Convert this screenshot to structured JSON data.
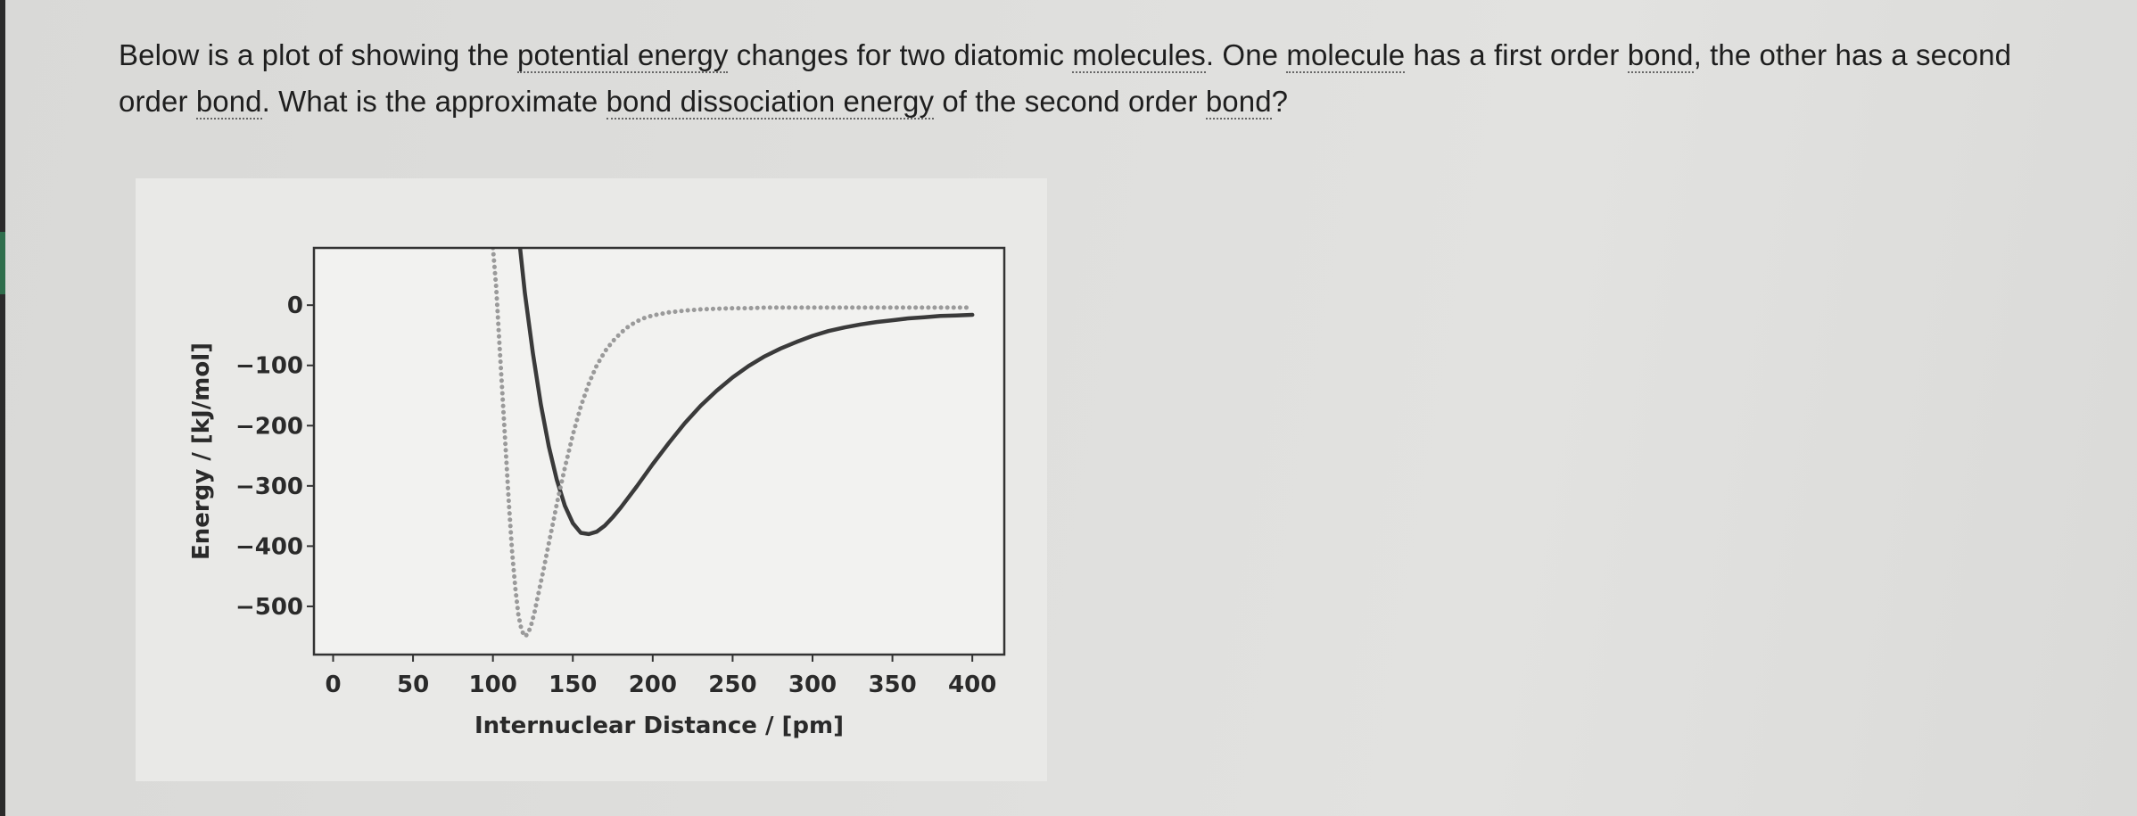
{
  "question": {
    "parts": [
      {
        "text": "Below is a plot of showing the ",
        "dotted": false
      },
      {
        "text": "potential energy",
        "dotted": true
      },
      {
        "text": " changes for two diatomic ",
        "dotted": false
      },
      {
        "text": "molecules",
        "dotted": true
      },
      {
        "text": ".  One ",
        "dotted": false
      },
      {
        "text": "molecule",
        "dotted": true
      },
      {
        "text": " has a first order ",
        "dotted": false
      },
      {
        "text": "bond",
        "dotted": true
      },
      {
        "text": ", the other has a second order ",
        "dotted": false
      },
      {
        "text": "bond",
        "dotted": true
      },
      {
        "text": ". What is the approximate ",
        "dotted": false
      },
      {
        "text": "bond dissociation energy",
        "dotted": true
      },
      {
        "text": " of the second order ",
        "dotted": false
      },
      {
        "text": "bond",
        "dotted": true
      },
      {
        "text": "?",
        "dotted": false
      }
    ]
  },
  "chart_data": {
    "type": "line",
    "title": "",
    "xlabel": "Internuclear Distance / [pm]",
    "ylabel": "Energy / [kJ/mol]",
    "xlim": [
      -12,
      420
    ],
    "ylim": [
      -580,
      95
    ],
    "xticks": [
      0,
      50,
      100,
      150,
      200,
      250,
      300,
      350,
      400
    ],
    "yticks": [
      0,
      -100,
      -200,
      -300,
      -400,
      -500
    ],
    "xtick_labels": [
      "0",
      "50",
      "100",
      "150",
      "200",
      "250",
      "300",
      "350",
      "400"
    ],
    "ytick_labels": [
      "0",
      "−100",
      "−200",
      "−300",
      "−400",
      "−500"
    ],
    "grid": false,
    "series": [
      {
        "style": "solid",
        "color": "#3a3a3a",
        "x": [
          117,
          120,
          125,
          130,
          135,
          140,
          145,
          150,
          155,
          160,
          165,
          170,
          175,
          180,
          190,
          200,
          210,
          220,
          230,
          240,
          250,
          260,
          270,
          280,
          290,
          300,
          310,
          320,
          330,
          340,
          350,
          360,
          370,
          380,
          390,
          400
        ],
        "y": [
          95,
          20,
          -80,
          -165,
          -235,
          -290,
          -333,
          -362,
          -378,
          -380,
          -376,
          -366,
          -352,
          -336,
          -301,
          -264,
          -229,
          -196,
          -167,
          -142,
          -120,
          -101,
          -85,
          -72,
          -61,
          -51,
          -43,
          -37,
          -32,
          -28,
          -25,
          -22,
          -20,
          -18,
          -17,
          -16
        ]
      },
      {
        "style": "dotted",
        "color": "#9a9a9a",
        "x": [
          100,
          102,
          104,
          106,
          108,
          110,
          112,
          114,
          116,
          118,
          120,
          122,
          124,
          126,
          128,
          130,
          132,
          134,
          136,
          138,
          140,
          145,
          150,
          155,
          160,
          165,
          170,
          175,
          180,
          185,
          190,
          195,
          200,
          210,
          220,
          230,
          240,
          250,
          260,
          270,
          280,
          290,
          300,
          310,
          320,
          330,
          340,
          350,
          360,
          370,
          380,
          390,
          400
        ],
        "y": [
          95,
          30,
          -60,
          -150,
          -240,
          -330,
          -410,
          -470,
          -515,
          -540,
          -550,
          -545,
          -530,
          -510,
          -485,
          -460,
          -435,
          -408,
          -382,
          -356,
          -330,
          -270,
          -215,
          -168,
          -130,
          -100,
          -77,
          -60,
          -46,
          -35,
          -27,
          -21,
          -17,
          -12,
          -9,
          -7,
          -6,
          -5,
          -5,
          -4,
          -4,
          -4,
          -4,
          -4,
          -4,
          -4,
          -4,
          -4,
          -4,
          -4,
          -4,
          -4,
          -4
        ]
      }
    ]
  }
}
